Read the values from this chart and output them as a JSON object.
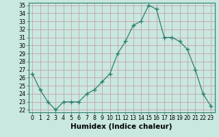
{
  "x": [
    0,
    1,
    2,
    3,
    4,
    5,
    6,
    7,
    8,
    9,
    10,
    11,
    12,
    13,
    14,
    15,
    16,
    17,
    18,
    19,
    20,
    21,
    22,
    23
  ],
  "y": [
    26.5,
    24.5,
    23.0,
    22.0,
    23.0,
    23.0,
    23.0,
    24.0,
    24.5,
    25.5,
    26.5,
    29.0,
    30.5,
    32.5,
    33.0,
    35.0,
    34.5,
    31.0,
    31.0,
    30.5,
    29.5,
    27.0,
    24.0,
    22.5
  ],
  "line_color": "#2e7d6e",
  "marker": "+",
  "marker_size": 4,
  "bg_color": "#c8e8e0",
  "plot_bg_color": "#c8e8e0",
  "grid_color": "#c8a0a8",
  "xlabel": "Humidex (Indice chaleur)",
  "ylim": [
    22,
    35
  ],
  "xlim": [
    -0.5,
    23.5
  ],
  "yticks": [
    22,
    23,
    24,
    25,
    26,
    27,
    28,
    29,
    30,
    31,
    32,
    33,
    34,
    35
  ],
  "xticks": [
    0,
    1,
    2,
    3,
    4,
    5,
    6,
    7,
    8,
    9,
    10,
    11,
    12,
    13,
    14,
    15,
    16,
    17,
    18,
    19,
    20,
    21,
    22,
    23
  ],
  "tick_label_fontsize": 5.8,
  "xlabel_fontsize": 7.5
}
